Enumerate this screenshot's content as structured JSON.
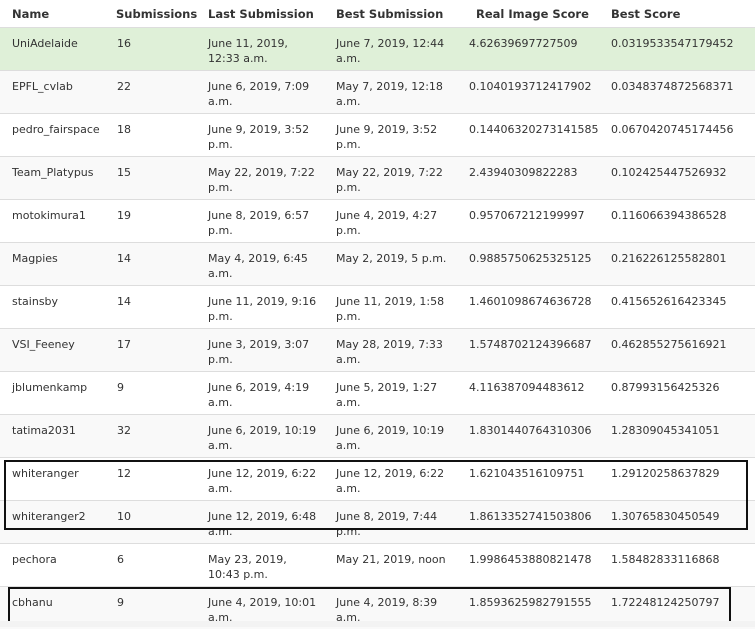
{
  "headers": {
    "name": "Name",
    "submissions": "Submissions",
    "last": "Last Submission",
    "best": "Best Submission",
    "real": "Real Image Score",
    "score": "Best Score"
  },
  "rows": [
    {
      "name": "UniAdelaide",
      "submissions": "16",
      "last": "June 11, 2019,\n12:33 a.m.",
      "best": "June 7, 2019, 12:44\na.m.",
      "real": "4.62639697727509",
      "score": "0.0319533547179452"
    },
    {
      "name": "EPFL_cvlab",
      "submissions": "22",
      "last": "June 6, 2019, 7:09\na.m.",
      "best": "May 7, 2019, 12:18\na.m.",
      "real": "0.1040193712417902",
      "score": "0.0348374872568371"
    },
    {
      "name": "pedro_fairspace",
      "submissions": "18",
      "last": "June 9, 2019, 3:52\np.m.",
      "best": "June 9, 2019, 3:52\np.m.",
      "real": "0.14406320273141585",
      "score": "0.0670420745174456"
    },
    {
      "name": "Team_Platypus",
      "submissions": "15",
      "last": "May 22, 2019, 7:22\np.m.",
      "best": "May 22, 2019, 7:22\np.m.",
      "real": "2.43940309822283",
      "score": "0.102425447526932"
    },
    {
      "name": "motokimura1",
      "submissions": "19",
      "last": "June 8, 2019, 6:57\np.m.",
      "best": "June 4, 2019, 4:27\np.m.",
      "real": "0.957067212199997",
      "score": "0.116066394386528"
    },
    {
      "name": "Magpies",
      "submissions": "14",
      "last": "May 4, 2019, 6:45\na.m.",
      "best": "May 2, 2019, 5 p.m.",
      "real": "0.9885750625325125",
      "score": "0.216226125582801"
    },
    {
      "name": "stainsby",
      "submissions": "14",
      "last": "June 11, 2019, 9:16\np.m.",
      "best": "June 11, 2019, 1:58\np.m.",
      "real": "1.4601098674636728",
      "score": "0.415652616423345"
    },
    {
      "name": "VSI_Feeney",
      "submissions": "17",
      "last": "June 3, 2019, 3:07\np.m.",
      "best": "May 28, 2019, 7:33\na.m.",
      "real": "1.5748702124396687",
      "score": "0.462855275616921"
    },
    {
      "name": "jblumenkamp",
      "submissions": "9",
      "last": "June 6, 2019, 4:19\na.m.",
      "best": "June 5, 2019, 1:27\na.m.",
      "real": "4.116387094483612",
      "score": "0.87993156425326"
    },
    {
      "name": "tatima2031",
      "submissions": "32",
      "last": "June 6, 2019, 10:19\na.m.",
      "best": "June 6, 2019, 10:19\na.m.",
      "real": "1.8301440764310306",
      "score": "1.28309045341051"
    },
    {
      "name": "whiteranger",
      "submissions": "12",
      "last": "June 12, 2019, 6:22\na.m.",
      "best": "June 12, 2019, 6:22\na.m.",
      "real": "1.621043516109751",
      "score": "1.29120258637829"
    },
    {
      "name": "whiteranger2",
      "submissions": "10",
      "last": "June 12, 2019, 6:48\na.m.",
      "best": "June 8, 2019, 7:44\np.m.",
      "real": "1.8613352741503806",
      "score": "1.30765830450549"
    },
    {
      "name": "pechora",
      "submissions": "6",
      "last": "May 23, 2019,\n10:43 p.m.",
      "best": "May 21, 2019, noon",
      "real": "1.9986453880821478",
      "score": "1.58482833116868"
    },
    {
      "name": "cbhanu",
      "submissions": "9",
      "last": "June 4, 2019, 10:01\na.m.",
      "best": "June 4, 2019, 8:39\na.m.",
      "real": "1.8593625982791555",
      "score": "1.72248124250797"
    }
  ],
  "colors": {
    "highlight_row": "#dff0d8",
    "border": "#dddddd",
    "annotation_box": "#111111"
  }
}
